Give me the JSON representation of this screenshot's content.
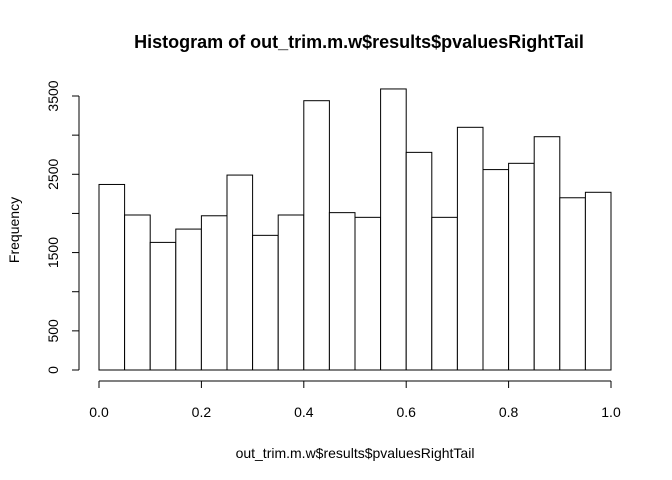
{
  "chart_data": {
    "type": "bar",
    "title": "Histogram of out_trim.m.w$results$pvaluesRightTail",
    "xlabel": "out_trim.m.w$results$pvaluesRightTail",
    "ylabel": "Frequency",
    "bin_width": 0.05,
    "bin_edges": [
      0.0,
      0.05,
      0.1,
      0.15,
      0.2,
      0.25,
      0.3,
      0.35,
      0.4,
      0.45,
      0.5,
      0.55,
      0.6,
      0.65,
      0.7,
      0.75,
      0.8,
      0.85,
      0.9,
      0.95,
      1.0
    ],
    "values": [
      2370,
      1980,
      1630,
      1800,
      1970,
      2490,
      1720,
      1980,
      3440,
      2010,
      1950,
      3590,
      2780,
      1950,
      3100,
      2560,
      2640,
      2980,
      2200,
      2270
    ],
    "xlim": [
      0,
      1
    ],
    "ylim": [
      0,
      3600
    ],
    "x_ticks": [
      0.0,
      0.2,
      0.4,
      0.6,
      0.8,
      1.0
    ],
    "x_tick_labels": [
      "0.0",
      "0.2",
      "0.4",
      "0.6",
      "0.8",
      "1.0"
    ],
    "y_ticks": [
      0,
      500,
      1000,
      1500,
      2000,
      2500,
      3000,
      3500
    ],
    "y_tick_labels": [
      "0",
      "500",
      "",
      "1500",
      "",
      "2500",
      "",
      "3500"
    ],
    "grid": false,
    "legend": "none"
  }
}
